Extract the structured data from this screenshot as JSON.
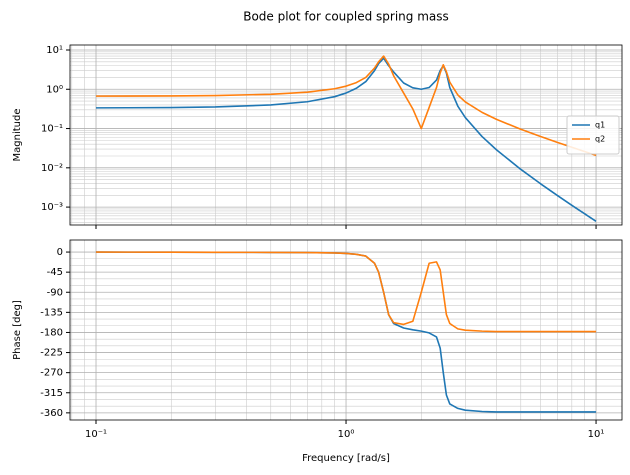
{
  "title": "Bode plot for coupled spring mass",
  "chart_data": [
    {
      "type": "line",
      "ylabel": "Magnitude",
      "xscale": "log",
      "yscale": "log",
      "grid": true,
      "legend": "center right",
      "xlim": [
        0.0787,
        12.7
      ],
      "ylim": [
        0.00035,
        13.4
      ],
      "xticks": [
        0.1,
        1,
        10
      ],
      "yticks": [
        {
          "value": 0.001,
          "label": "10⁻³"
        },
        {
          "value": 0.01,
          "label": "10⁻²"
        },
        {
          "value": 0.1,
          "label": "10⁻¹"
        },
        {
          "value": 1,
          "label": "10⁰"
        },
        {
          "value": 10,
          "label": "10¹"
        }
      ],
      "x": [
        0.1,
        0.2,
        0.3,
        0.5,
        0.7,
        0.9,
        1.0,
        1.1,
        1.2,
        1.3,
        1.35,
        1.414,
        1.48,
        1.55,
        1.7,
        1.85,
        2.0,
        2.15,
        2.3,
        2.38,
        2.449,
        2.52,
        2.6,
        2.8,
        3.0,
        3.5,
        4,
        5,
        6,
        7,
        8,
        10
      ],
      "series": [
        {
          "name": "q1",
          "color": "#1f77b4",
          "values": [
            0.336,
            0.342,
            0.354,
            0.398,
            0.481,
            0.647,
            0.8,
            1.06,
            1.57,
            2.99,
            4.5,
            6.2,
            4.0,
            2.76,
            1.445,
            1.09,
            1.0,
            1.107,
            1.71,
            3.0,
            4.0,
            2.6,
            1.105,
            0.372,
            0.19,
            0.0624,
            0.0286,
            0.00915,
            0.00392,
            0.00198,
            0.00111,
            0.000434
          ]
        },
        {
          "name": "q2",
          "color": "#ff7f0e",
          "values": [
            0.669,
            0.678,
            0.693,
            0.746,
            0.844,
            1.03,
            1.2,
            1.48,
            2.0,
            3.46,
            5.0,
            7.0,
            4.4,
            2.21,
            0.8,
            0.315,
            0.1,
            0.345,
            1.1,
            2.6,
            4.2,
            2.8,
            1.52,
            0.714,
            0.476,
            0.258,
            0.171,
            0.096,
            0.0627,
            0.0445,
            0.0334,
            0.0208
          ]
        }
      ]
    },
    {
      "type": "line",
      "xlabel": "Frequency [rad/s]",
      "ylabel": "Phase [deg]",
      "xscale": "log",
      "grid": true,
      "xlim": [
        0.0787,
        12.7
      ],
      "ylim": [
        -376,
        27
      ],
      "xticks": [
        {
          "value": 0.1,
          "label": "10⁻¹"
        },
        {
          "value": 1,
          "label": "10⁰"
        },
        {
          "value": 10,
          "label": "10¹"
        }
      ],
      "yticks": [
        0,
        -45,
        -90,
        -135,
        -180,
        -225,
        -270,
        -315,
        -360
      ],
      "x": [
        0.1,
        0.2,
        0.3,
        0.5,
        0.7,
        0.9,
        1.0,
        1.1,
        1.2,
        1.3,
        1.35,
        1.414,
        1.48,
        1.55,
        1.7,
        1.85,
        2.0,
        2.15,
        2.3,
        2.38,
        2.449,
        2.52,
        2.6,
        2.8,
        3.0,
        3.5,
        4,
        5,
        6,
        7,
        8,
        10
      ],
      "series": [
        {
          "name": "q1",
          "color": "#1f77b4",
          "values": [
            0,
            -0.3,
            -0.5,
            -0.8,
            -1.2,
            -2,
            -3,
            -5,
            -9,
            -25,
            -45,
            -90,
            -140,
            -160,
            -170,
            -174,
            -177,
            -181,
            -190,
            -215,
            -270,
            -320,
            -340,
            -350,
            -354,
            -357,
            -358,
            -358,
            -358,
            -358,
            -358,
            -358
          ]
        },
        {
          "name": "q2",
          "color": "#ff7f0e",
          "values": [
            0,
            -0.3,
            -0.5,
            -0.8,
            -1.2,
            -2,
            -3,
            -5,
            -9,
            -25,
            -45,
            -90,
            -140,
            -158,
            -162,
            -155,
            -90,
            -25,
            -22,
            -40,
            -90,
            -140,
            -160,
            -172,
            -175,
            -177,
            -178,
            -178,
            -178,
            -178,
            -178,
            -178
          ]
        }
      ]
    }
  ]
}
